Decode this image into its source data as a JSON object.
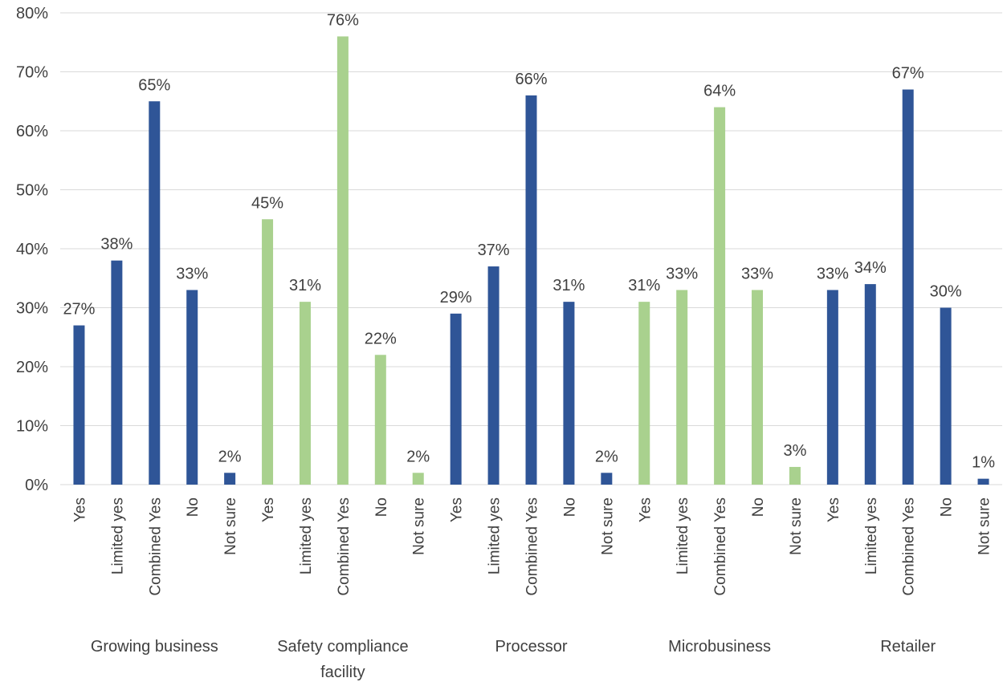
{
  "chart_data": {
    "type": "bar",
    "title": "",
    "xlabel": "",
    "ylabel": "",
    "ylim": [
      0,
      80
    ],
    "y_ticks": [
      "0%",
      "10%",
      "20%",
      "30%",
      "40%",
      "50%",
      "60%",
      "70%",
      "80%"
    ],
    "grid": true,
    "legend": "none",
    "colors": {
      "blue": "#2f5597",
      "green": "#a9d18e",
      "gridline": "#d9d9d9",
      "text": "#404040"
    },
    "groups": [
      {
        "name": "Growing business",
        "color": "#2f5597",
        "categories": [
          "Yes",
          "Limited yes",
          "Combined Yes",
          "No",
          "Not sure"
        ],
        "values": [
          27,
          38,
          65,
          33,
          2
        ],
        "labels": [
          "27%",
          "38%",
          "65%",
          "33%",
          "2%"
        ]
      },
      {
        "name": "Safety compliance facility",
        "color": "#a9d18e",
        "categories": [
          "Yes",
          "Limited yes",
          "Combined Yes",
          "No",
          "Not sure"
        ],
        "values": [
          45,
          31,
          76,
          22,
          2
        ],
        "labels": [
          "45%",
          "31%",
          "76%",
          "22%",
          "2%"
        ]
      },
      {
        "name": "Processor",
        "color": "#2f5597",
        "categories": [
          "Yes",
          "Limited yes",
          "Combined Yes",
          "No",
          "Not sure"
        ],
        "values": [
          29,
          37,
          66,
          31,
          2
        ],
        "labels": [
          "29%",
          "37%",
          "66%",
          "31%",
          "2%"
        ]
      },
      {
        "name": "Microbusiness",
        "color": "#a9d18e",
        "categories": [
          "Yes",
          "Limited yes",
          "Combined Yes",
          "No",
          "Not sure"
        ],
        "values": [
          31,
          33,
          64,
          33,
          3
        ],
        "labels": [
          "31%",
          "33%",
          "64%",
          "33%",
          "3%"
        ]
      },
      {
        "name": "Retailer",
        "color": "#2f5597",
        "categories": [
          "Yes",
          "Limited yes",
          "Combined Yes",
          "No",
          "Not sure"
        ],
        "values": [
          33,
          34,
          67,
          30,
          1
        ],
        "labels": [
          "33%",
          "34%",
          "67%",
          "30%",
          "1%"
        ]
      }
    ]
  }
}
